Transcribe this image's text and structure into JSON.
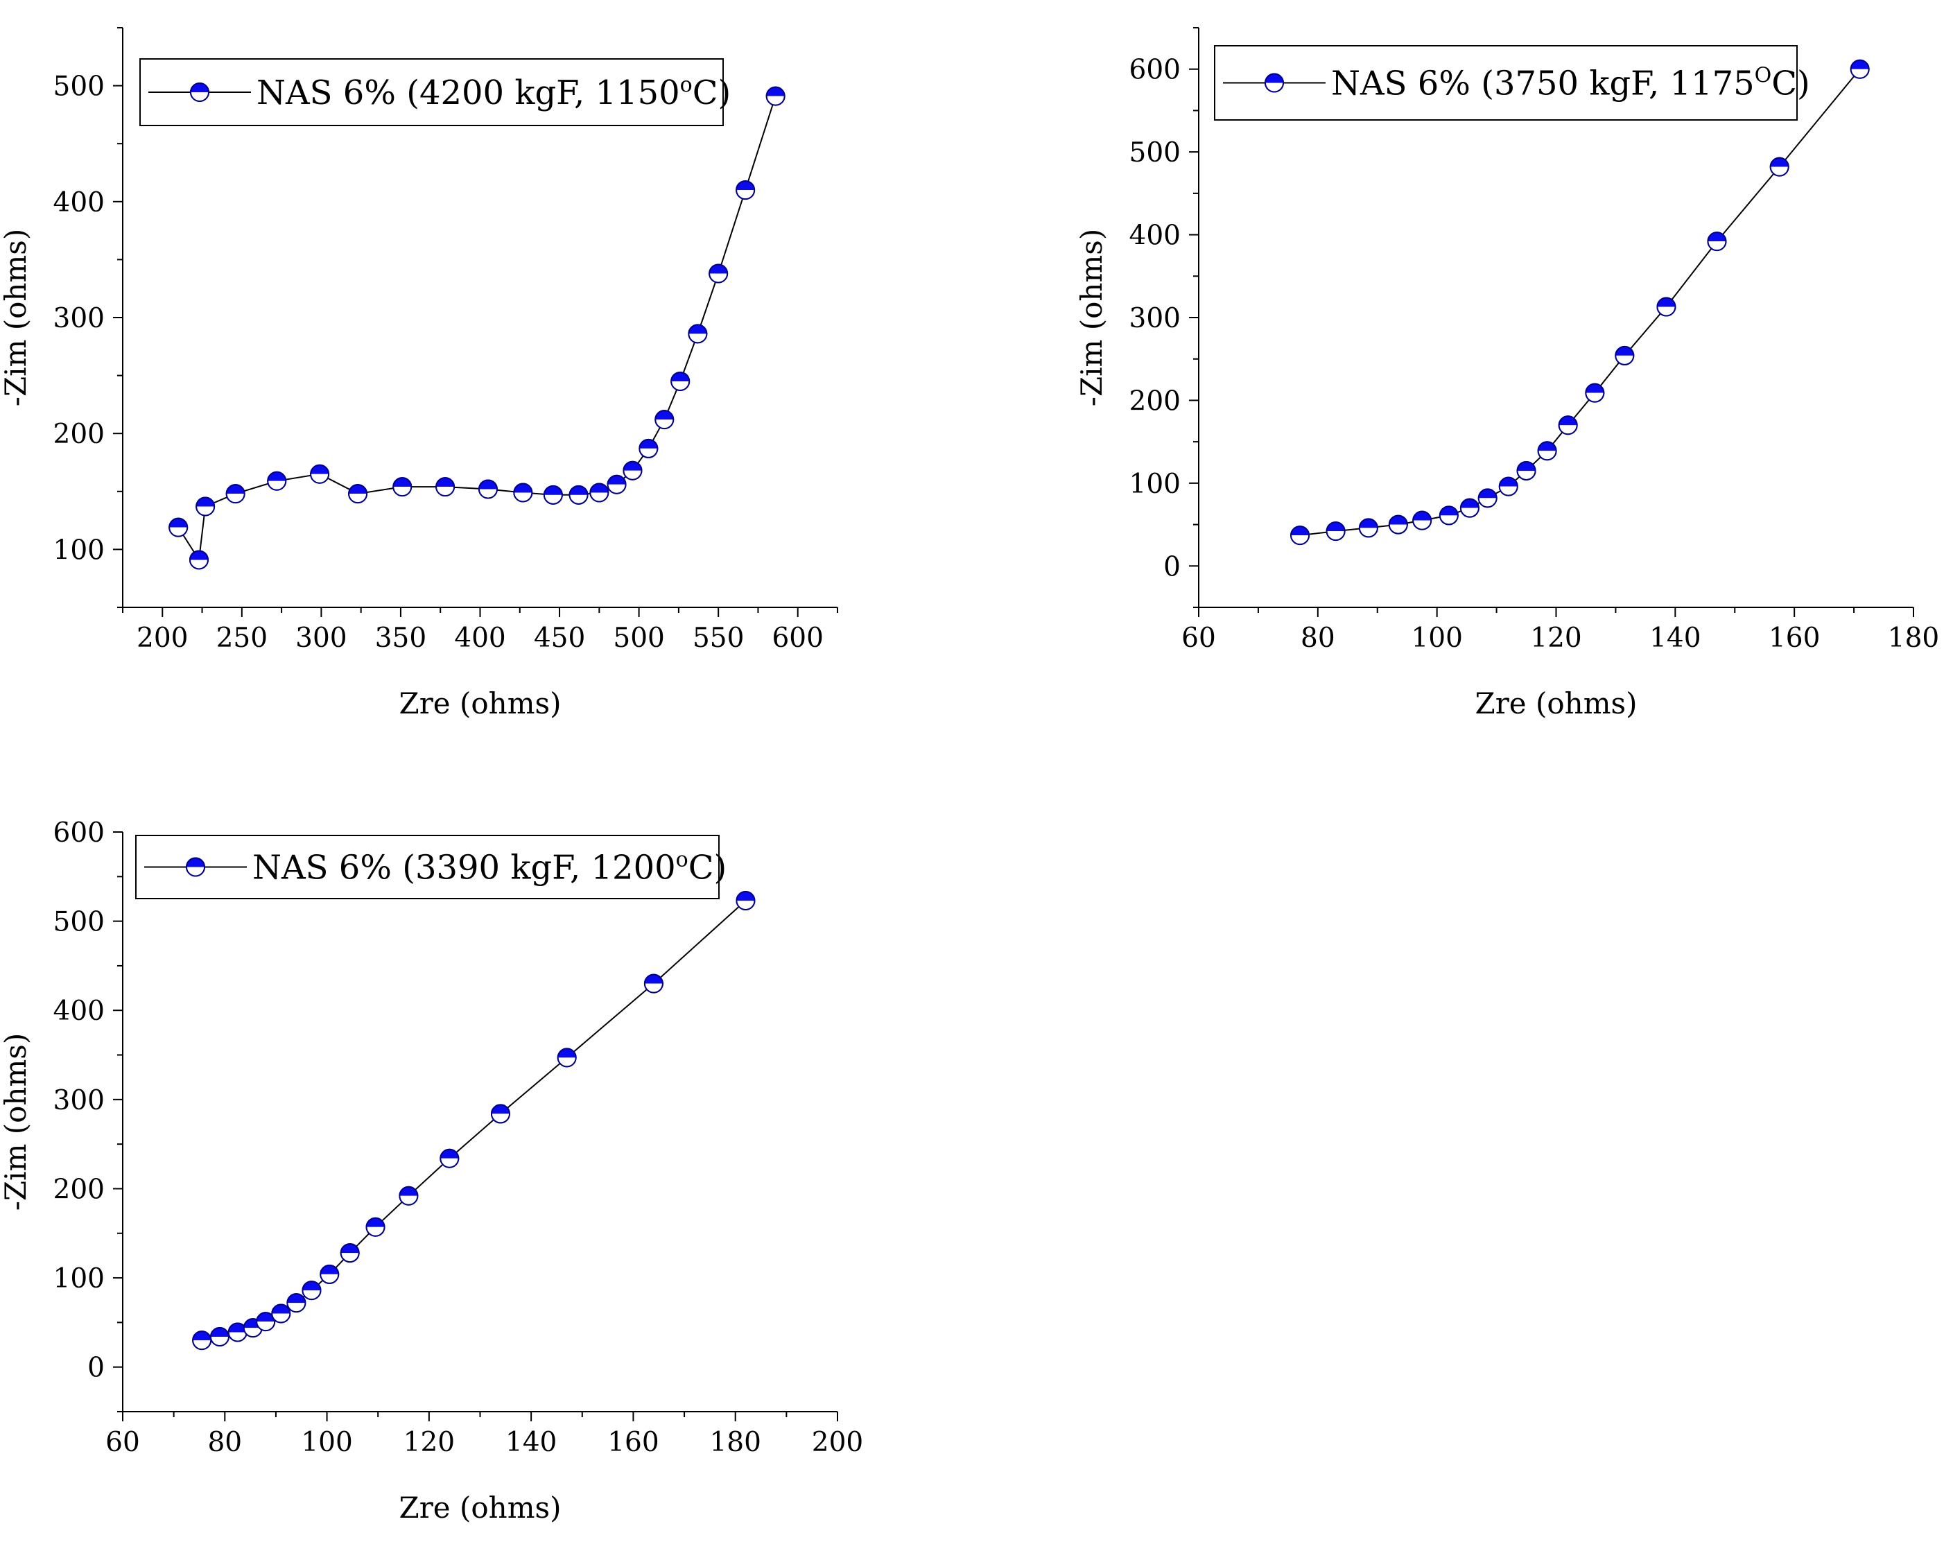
{
  "colors": {
    "marker": "#0a0af0",
    "marker_dark": "#00008b",
    "line": "#000000"
  },
  "chart_data": [
    {
      "type": "line",
      "xlabel": "Zre (ohms)",
      "ylabel": "-Zim (ohms)",
      "xlim": [
        175,
        625
      ],
      "ylim": [
        50,
        550
      ],
      "xticks": [
        200,
        250,
        300,
        350,
        400,
        450,
        500,
        550,
        600
      ],
      "yticks": [
        100,
        200,
        300,
        400,
        500
      ],
      "legend_position": "top-left",
      "series": [
        {
          "name": "NAS 6% (4200 kgF, 1150",
          "name_sup": "o",
          "name_end": "C)",
          "x": [
            210,
            223,
            227,
            246,
            272,
            299,
            323,
            351,
            378,
            405,
            427,
            446,
            462,
            475,
            486,
            496,
            506,
            516,
            526,
            537,
            550,
            567,
            586
          ],
          "y": [
            119,
            91,
            137,
            148,
            159,
            165,
            148,
            154,
            154,
            152,
            149,
            147,
            147,
            149,
            156,
            168,
            187,
            212,
            245,
            286,
            338,
            410,
            491
          ]
        }
      ]
    },
    {
      "type": "line",
      "xlabel": "Zre (ohms)",
      "ylabel": "-Zim (ohms)",
      "xlim": [
        60,
        180
      ],
      "ylim": [
        -50,
        650
      ],
      "xticks": [
        60,
        80,
        100,
        120,
        140,
        160,
        180
      ],
      "yticks": [
        0,
        100,
        200,
        300,
        400,
        500,
        600
      ],
      "legend_position": "top-left",
      "series": [
        {
          "name": "NAS 6% (3750 kgF, 1175",
          "name_sup": "O",
          "name_end": "C)",
          "x": [
            77,
            83,
            88.5,
            93.5,
            97.5,
            102,
            105.5,
            108.5,
            112,
            115,
            118.5,
            122,
            126.5,
            131.5,
            138.5,
            147,
            157.5,
            171
          ],
          "y": [
            37,
            42,
            46,
            50,
            55,
            61,
            70,
            82,
            96,
            115,
            139,
            170,
            209,
            254,
            313,
            392,
            482,
            600
          ]
        }
      ]
    },
    {
      "type": "line",
      "xlabel": "Zre (ohms)",
      "ylabel": "-Zim (ohms)",
      "xlim": [
        60,
        200
      ],
      "ylim": [
        -50,
        600
      ],
      "xticks": [
        60,
        80,
        100,
        120,
        140,
        160,
        180,
        200
      ],
      "yticks": [
        0,
        100,
        200,
        300,
        400,
        500,
        600
      ],
      "legend_position": "top-left",
      "series": [
        {
          "name": "NAS 6% (3390 kgF, 1200",
          "name_sup": "o",
          "name_end": "C)",
          "x": [
            75.5,
            79,
            82.5,
            85.5,
            88,
            91,
            94,
            97,
            100.5,
            104.5,
            109.5,
            116,
            124,
            134,
            147,
            164,
            182
          ],
          "y": [
            30,
            34,
            39,
            44,
            51,
            60,
            72,
            86,
            104,
            128,
            157,
            192,
            234,
            284,
            347,
            430,
            523
          ]
        }
      ]
    }
  ]
}
